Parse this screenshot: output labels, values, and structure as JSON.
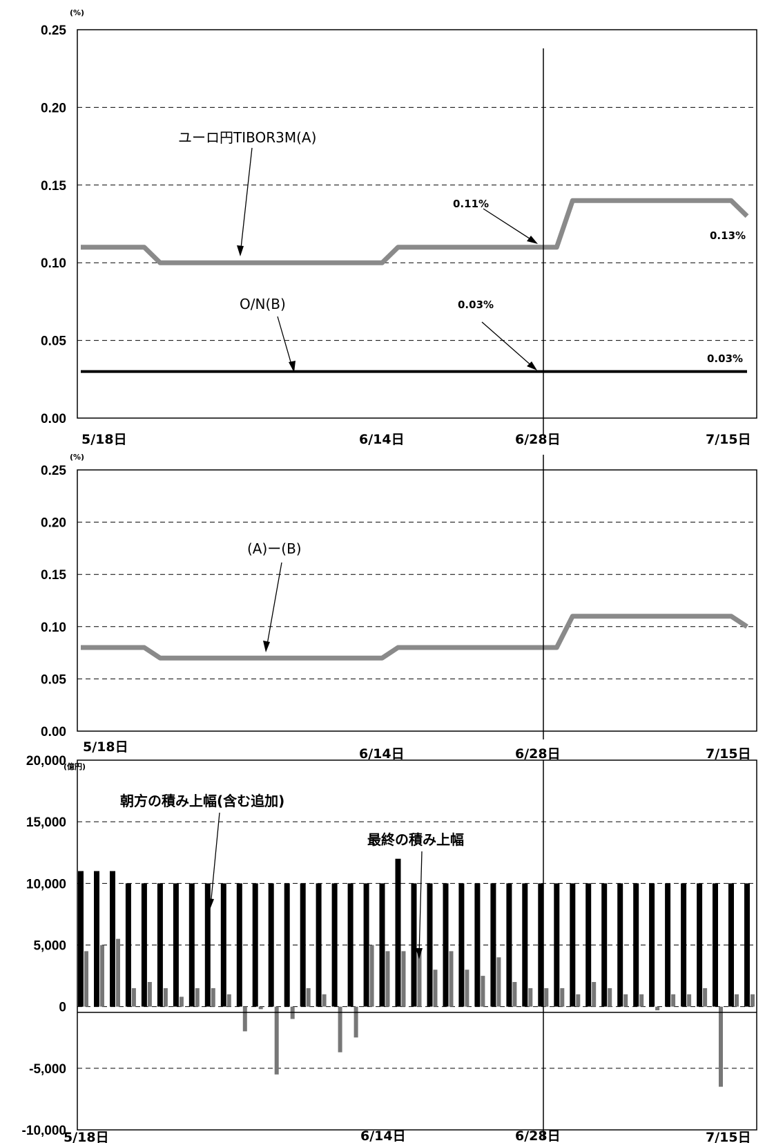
{
  "chart_data": [
    {
      "type": "line",
      "yunit": "(%)",
      "ylim": [
        0,
        0.25
      ],
      "yticks": [
        "0.25",
        "0.20",
        "0.15",
        "0.10",
        "0.05",
        "0.00"
      ],
      "grid": true,
      "xlabels": [
        "5/18日",
        "6/14日",
        "6/28日",
        "7/15日"
      ],
      "marker_date": "6/28日",
      "series": [
        {
          "name": "ユーロ円TIBOR3M(A)",
          "color": "#8a8a8a",
          "x": [
            "5/18",
            "5/19",
            "5/20",
            "5/21",
            "5/22",
            "5/25",
            "5/26",
            "5/27",
            "5/28",
            "5/29",
            "6/1",
            "6/2",
            "6/3",
            "6/4",
            "6/5",
            "6/8",
            "6/9",
            "6/10",
            "6/11",
            "6/12",
            "6/15",
            "6/16",
            "6/17",
            "6/18",
            "6/19",
            "6/22",
            "6/23",
            "6/24",
            "6/25",
            "6/26",
            "6/29",
            "6/30",
            "7/1",
            "7/2",
            "7/3",
            "7/6",
            "7/7",
            "7/8",
            "7/9",
            "7/10",
            "7/13",
            "7/14",
            "7/15"
          ],
          "values": [
            0.11,
            0.11,
            0.11,
            0.11,
            0.11,
            0.1,
            0.1,
            0.1,
            0.1,
            0.1,
            0.1,
            0.1,
            0.1,
            0.1,
            0.1,
            0.1,
            0.1,
            0.1,
            0.1,
            0.1,
            0.11,
            0.11,
            0.11,
            0.11,
            0.11,
            0.11,
            0.11,
            0.11,
            0.11,
            0.11,
            0.11,
            0.14,
            0.14,
            0.14,
            0.14,
            0.14,
            0.14,
            0.14,
            0.14,
            0.14,
            0.14,
            0.14,
            0.13
          ]
        },
        {
          "name": "O/N(B)",
          "color": "#000000",
          "x": [
            "5/18",
            "7/15"
          ],
          "values": [
            0.03,
            0.03
          ]
        }
      ],
      "annotations": [
        "0.11%",
        "0.13%",
        "0.03%",
        "0.03%"
      ]
    },
    {
      "type": "line",
      "yunit": "(%)",
      "ylim": [
        0,
        0.25
      ],
      "yticks": [
        "0.25",
        "0.20",
        "0.15",
        "0.10",
        "0.05",
        "0.00"
      ],
      "grid": true,
      "xlabels": [
        "5/18日",
        "6/14日",
        "6/28日",
        "7/15日"
      ],
      "marker_date": "6/28日",
      "series": [
        {
          "name": "(A)ー(B)",
          "color": "#8a8a8a",
          "x": [
            "5/18",
            "5/19",
            "5/20",
            "5/21",
            "5/22",
            "5/25",
            "5/26",
            "5/27",
            "5/28",
            "5/29",
            "6/1",
            "6/2",
            "6/3",
            "6/4",
            "6/5",
            "6/8",
            "6/9",
            "6/10",
            "6/11",
            "6/12",
            "6/15",
            "6/16",
            "6/17",
            "6/18",
            "6/19",
            "6/22",
            "6/23",
            "6/24",
            "6/25",
            "6/26",
            "6/29",
            "6/30",
            "7/1",
            "7/2",
            "7/3",
            "7/6",
            "7/7",
            "7/8",
            "7/9",
            "7/10",
            "7/13",
            "7/14",
            "7/15"
          ],
          "values": [
            0.08,
            0.08,
            0.08,
            0.08,
            0.08,
            0.07,
            0.07,
            0.07,
            0.07,
            0.07,
            0.07,
            0.07,
            0.07,
            0.07,
            0.07,
            0.07,
            0.07,
            0.07,
            0.07,
            0.07,
            0.08,
            0.08,
            0.08,
            0.08,
            0.08,
            0.08,
            0.08,
            0.08,
            0.08,
            0.08,
            0.08,
            0.11,
            0.11,
            0.11,
            0.11,
            0.11,
            0.11,
            0.11,
            0.11,
            0.11,
            0.11,
            0.11,
            0.1
          ]
        }
      ]
    },
    {
      "type": "bar",
      "yunit": "(億円)",
      "ylim": [
        -10000,
        20000
      ],
      "yticks": [
        "20,000",
        "15,000",
        "10,000",
        "5,000",
        "0",
        "-5,000",
        "-10,000"
      ],
      "grid": true,
      "xlabels": [
        "5/18日",
        "6/14日",
        "6/28日",
        "7/15日"
      ],
      "marker_date": "6/28日",
      "categories": [
        "5/18",
        "5/19",
        "5/20",
        "5/21",
        "5/22",
        "5/25",
        "5/26",
        "5/27",
        "5/28",
        "5/29",
        "6/1",
        "6/2",
        "6/3",
        "6/4",
        "6/5",
        "6/8",
        "6/9",
        "6/10",
        "6/11",
        "6/12",
        "6/15",
        "6/16",
        "6/17",
        "6/18",
        "6/19",
        "6/22",
        "6/23",
        "6/24",
        "6/25",
        "6/26",
        "6/29",
        "6/30",
        "7/1",
        "7/2",
        "7/3",
        "7/6",
        "7/7",
        "7/8",
        "7/9",
        "7/10",
        "7/13",
        "7/14",
        "7/15"
      ],
      "series": [
        {
          "name": "朝方の積み上幅(含む追加)",
          "color": "#000000",
          "values": [
            11000,
            11000,
            11000,
            10000,
            10000,
            10000,
            10000,
            10000,
            10000,
            10000,
            10000,
            10000,
            10000,
            10000,
            10000,
            10000,
            10000,
            10000,
            10000,
            10000,
            12000,
            10000,
            10000,
            10000,
            10000,
            10000,
            10000,
            10000,
            10000,
            10000,
            10000,
            10000,
            10000,
            10000,
            10000,
            10000,
            10000,
            10000,
            10000,
            10000,
            10000,
            10000,
            10000
          ]
        },
        {
          "name": "最終の積み上幅",
          "color": "#777777",
          "values": [
            4500,
            5000,
            5500,
            1500,
            2000,
            1500,
            800,
            1500,
            1500,
            1000,
            -2000,
            -200,
            -5500,
            -1000,
            1500,
            1000,
            -3700,
            -2500,
            5000,
            4500,
            4500,
            4500,
            3000,
            4500,
            3000,
            2500,
            4000,
            2000,
            1500,
            1500,
            1500,
            1000,
            2000,
            1500,
            1000,
            1000,
            -300,
            1000,
            1000,
            1500,
            -6500,
            1000,
            1000
          ]
        }
      ]
    }
  ]
}
